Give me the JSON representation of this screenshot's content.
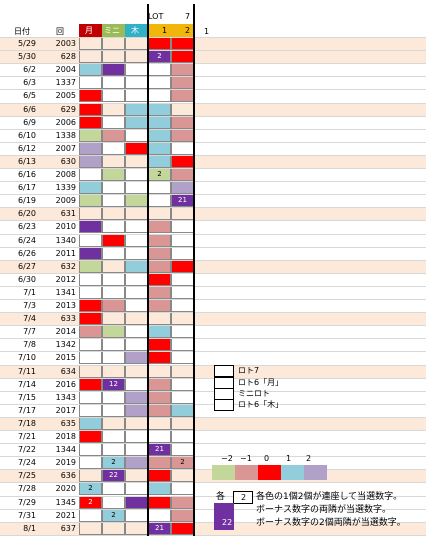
{
  "header": {
    "date_label": "日付",
    "round_label": "回",
    "lot_label": "LOT",
    "seven_label": "7",
    "one_label": "1",
    "lot_sub1": "1",
    "lot_sub2": "2",
    "col_labels": [
      "月",
      "ミニ",
      "木"
    ]
  },
  "colors": {
    "red": "#ff0000",
    "purple": "#7030a0",
    "lightblue": "#92cddc",
    "pink": "#da9694",
    "green": "#c4d79b",
    "peach": "#fde9d9",
    "gold": "#f2b50a",
    "darkred": "#c00000",
    "olive": "#9bbb59",
    "teal": "#31b1c6"
  },
  "rows": [
    {
      "date": "5/29",
      "round": "2003",
      "band": true,
      "cells": [
        "",
        "",
        "",
        "R",
        "R"
      ],
      "labels": [
        "",
        "",
        "",
        "",
        ""
      ]
    },
    {
      "date": "5/30",
      "round": "628",
      "band": true,
      "cells": [
        "",
        "",
        "",
        "P",
        "R"
      ],
      "labels": [
        "",
        "",
        "",
        "2",
        ""
      ]
    },
    {
      "date": "6/2",
      "round": "2004",
      "band": false,
      "cells": [
        "B",
        "P",
        "",
        "",
        "K"
      ],
      "labels": [
        "",
        "",
        "",
        "",
        ""
      ]
    },
    {
      "date": "6/3",
      "round": "1337",
      "band": false,
      "cells": [
        "",
        "",
        "",
        "",
        "K"
      ],
      "labels": [
        "",
        "",
        "",
        "",
        ""
      ]
    },
    {
      "date": "6/5",
      "round": "2005",
      "band": false,
      "cells": [
        "R",
        "",
        "",
        "",
        "K"
      ],
      "labels": [
        "",
        "",
        "",
        "",
        ""
      ]
    },
    {
      "date": "6/6",
      "round": "629",
      "band": true,
      "cells": [
        "R",
        "",
        "B",
        "B",
        ""
      ],
      "labels": [
        "",
        "",
        "",
        "",
        ""
      ]
    },
    {
      "date": "6/9",
      "round": "2006",
      "band": false,
      "cells": [
        "R",
        "",
        "B",
        "B",
        "K"
      ],
      "labels": [
        "",
        "",
        "",
        "",
        ""
      ]
    },
    {
      "date": "6/10",
      "round": "1338",
      "band": false,
      "cells": [
        "G",
        "K",
        "",
        "B",
        "K"
      ],
      "labels": [
        "",
        "",
        "",
        "",
        ""
      ]
    },
    {
      "date": "6/12",
      "round": "2007",
      "band": false,
      "cells": [
        "L",
        "",
        "R",
        "B",
        ""
      ],
      "labels": [
        "",
        "",
        "",
        "",
        ""
      ]
    },
    {
      "date": "6/13",
      "round": "630",
      "band": true,
      "cells": [
        "L",
        "",
        "",
        "B",
        "R"
      ],
      "labels": [
        "",
        "",
        "",
        "",
        ""
      ]
    },
    {
      "date": "6/16",
      "round": "2008",
      "band": false,
      "cells": [
        "",
        "G",
        "",
        "G",
        "K"
      ],
      "labels": [
        "",
        "",
        "",
        "2",
        ""
      ]
    },
    {
      "date": "6/17",
      "round": "1339",
      "band": false,
      "cells": [
        "B",
        "",
        "",
        "",
        "L"
      ],
      "labels": [
        "",
        "",
        "",
        "",
        ""
      ]
    },
    {
      "date": "6/19",
      "round": "2009",
      "band": false,
      "cells": [
        "G",
        "",
        "G",
        "",
        "P"
      ],
      "labels": [
        "",
        "",
        "",
        "",
        "21"
      ]
    },
    {
      "date": "6/20",
      "round": "631",
      "band": true,
      "cells": [
        "",
        "",
        "",
        "",
        ""
      ],
      "labels": [
        "",
        "",
        "",
        "",
        ""
      ]
    },
    {
      "date": "6/23",
      "round": "2010",
      "band": false,
      "cells": [
        "P",
        "",
        "",
        "K",
        ""
      ],
      "labels": [
        "",
        "",
        "",
        "",
        ""
      ]
    },
    {
      "date": "6/24",
      "round": "1340",
      "band": false,
      "cells": [
        "",
        "R",
        "",
        "K",
        ""
      ],
      "labels": [
        "",
        "",
        "",
        "",
        ""
      ]
    },
    {
      "date": "6/26",
      "round": "2011",
      "band": false,
      "cells": [
        "P",
        "",
        "",
        "K",
        ""
      ],
      "labels": [
        "",
        "",
        "",
        "",
        ""
      ]
    },
    {
      "date": "6/27",
      "round": "632",
      "band": true,
      "cells": [
        "G",
        "",
        "B",
        "K",
        "R"
      ],
      "labels": [
        "",
        "",
        "",
        "",
        ""
      ]
    },
    {
      "date": "6/30",
      "round": "2012",
      "band": false,
      "cells": [
        "",
        "",
        "",
        "R",
        ""
      ],
      "labels": [
        "",
        "",
        "",
        "",
        ""
      ]
    },
    {
      "date": "7/1",
      "round": "1341",
      "band": false,
      "cells": [
        "",
        "",
        "",
        "K",
        ""
      ],
      "labels": [
        "",
        "",
        "",
        "",
        ""
      ]
    },
    {
      "date": "7/3",
      "round": "2013",
      "band": false,
      "cells": [
        "R",
        "K",
        "",
        "K",
        ""
      ],
      "labels": [
        "",
        "",
        "",
        "",
        ""
      ]
    },
    {
      "date": "7/4",
      "round": "633",
      "band": true,
      "cells": [
        "R",
        "",
        "",
        "",
        ""
      ],
      "labels": [
        "",
        "",
        "",
        "",
        ""
      ]
    },
    {
      "date": "7/7",
      "round": "2014",
      "band": false,
      "cells": [
        "K",
        "G",
        "",
        "B",
        ""
      ],
      "labels": [
        "",
        "",
        "",
        "",
        ""
      ]
    },
    {
      "date": "7/8",
      "round": "1342",
      "band": false,
      "cells": [
        "",
        "",
        "",
        "R",
        ""
      ],
      "labels": [
        "",
        "",
        "",
        "",
        ""
      ]
    },
    {
      "date": "7/10",
      "round": "2015",
      "band": false,
      "cells": [
        "",
        "",
        "L",
        "R",
        ""
      ],
      "labels": [
        "",
        "",
        "",
        "",
        ""
      ]
    },
    {
      "date": "7/11",
      "round": "634",
      "band": true,
      "cells": [
        "",
        "",
        "",
        "",
        ""
      ],
      "labels": [
        "",
        "",
        "",
        "",
        ""
      ]
    },
    {
      "date": "7/14",
      "round": "2016",
      "band": false,
      "cells": [
        "R",
        "P",
        "",
        "K",
        ""
      ],
      "labels": [
        "",
        "12",
        "",
        "",
        ""
      ]
    },
    {
      "date": "7/15",
      "round": "1343",
      "band": false,
      "cells": [
        "",
        "",
        "L",
        "K",
        ""
      ],
      "labels": [
        "",
        "",
        "",
        "",
        ""
      ]
    },
    {
      "date": "7/17",
      "round": "2017",
      "band": false,
      "cells": [
        "",
        "",
        "L",
        "K",
        "B"
      ],
      "labels": [
        "",
        "",
        "",
        "",
        ""
      ]
    },
    {
      "date": "7/18",
      "round": "635",
      "band": true,
      "cells": [
        "B",
        "",
        "",
        "",
        ""
      ],
      "labels": [
        "",
        "",
        "",
        "",
        ""
      ]
    },
    {
      "date": "7/21",
      "round": "2018",
      "band": false,
      "cells": [
        "R",
        "",
        "",
        "",
        ""
      ],
      "labels": [
        "",
        "",
        "",
        "",
        ""
      ]
    },
    {
      "date": "7/22",
      "round": "1344",
      "band": false,
      "cells": [
        "",
        "",
        "",
        "P",
        ""
      ],
      "labels": [
        "",
        "",
        "",
        "21",
        ""
      ]
    },
    {
      "date": "7/24",
      "round": "2019",
      "band": false,
      "cells": [
        "",
        "B",
        "L",
        "K",
        "K"
      ],
      "labels": [
        "",
        "2",
        "",
        "",
        "2"
      ]
    },
    {
      "date": "7/25",
      "round": "636",
      "band": true,
      "cells": [
        "",
        "P",
        "",
        "R",
        ""
      ],
      "labels": [
        "",
        "22",
        "",
        "",
        ""
      ]
    },
    {
      "date": "7/28",
      "round": "2020",
      "band": false,
      "cells": [
        "B",
        "",
        "",
        "B",
        ""
      ],
      "labels": [
        "2",
        "",
        "",
        "",
        ""
      ]
    },
    {
      "date": "7/29",
      "round": "1345",
      "band": false,
      "cells": [
        "R",
        "",
        "P",
        "R",
        "K"
      ],
      "labels": [
        "2",
        "",
        "",
        "",
        ""
      ]
    },
    {
      "date": "7/31",
      "round": "2021",
      "band": false,
      "cells": [
        "",
        "B",
        "",
        "",
        "K"
      ],
      "labels": [
        "",
        "2",
        "",
        "",
        ""
      ]
    },
    {
      "date": "8/1",
      "round": "637",
      "band": true,
      "cells": [
        "",
        "",
        "",
        "P",
        "R"
      ],
      "labels": [
        "",
        "",
        "",
        "21",
        ""
      ]
    }
  ],
  "legend": {
    "items": [
      "ロト7",
      "ロト6「月」",
      "ミニロト",
      "ロト6「木」"
    ]
  },
  "scale": {
    "labels": [
      "−2",
      "−1",
      "0",
      "1",
      "2"
    ]
  },
  "notes": {
    "each_label": "各",
    "example_num": "2",
    "line1": "各色の1個2個が連座して当選数字。",
    "line2": "ボーナス数字の両隣が当選数字。",
    "line3_num": "22",
    "line3": "ボーナス数字の2個両隣が当選数字。"
  }
}
